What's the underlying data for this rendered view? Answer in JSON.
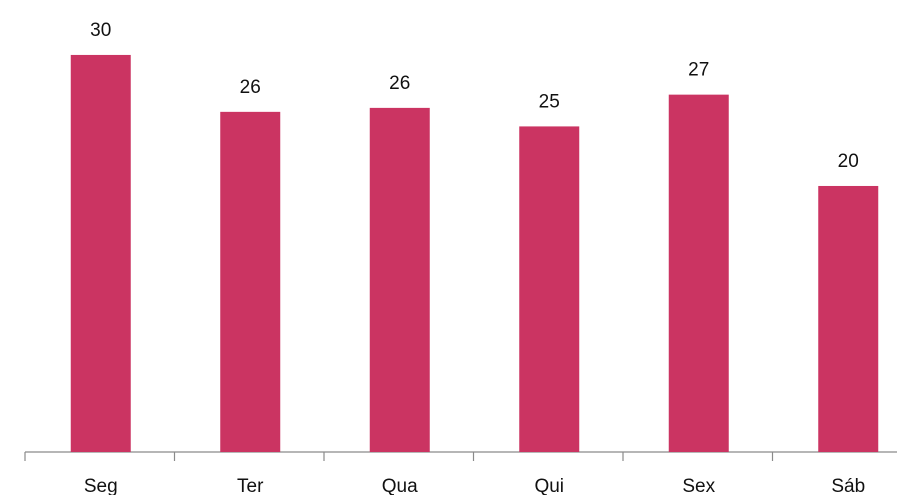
{
  "chart_data": {
    "type": "bar",
    "categories": [
      "Seg",
      "Ter",
      "Qua",
      "Qui",
      "Sex",
      "Sáb"
    ],
    "values": [
      30,
      25.7,
      26,
      24.6,
      27,
      20.1
    ],
    "value_labels": [
      "30",
      "26",
      "26",
      "25",
      "27",
      "20"
    ],
    "color": "#cb3462",
    "ylim": [
      0,
      34
    ]
  }
}
